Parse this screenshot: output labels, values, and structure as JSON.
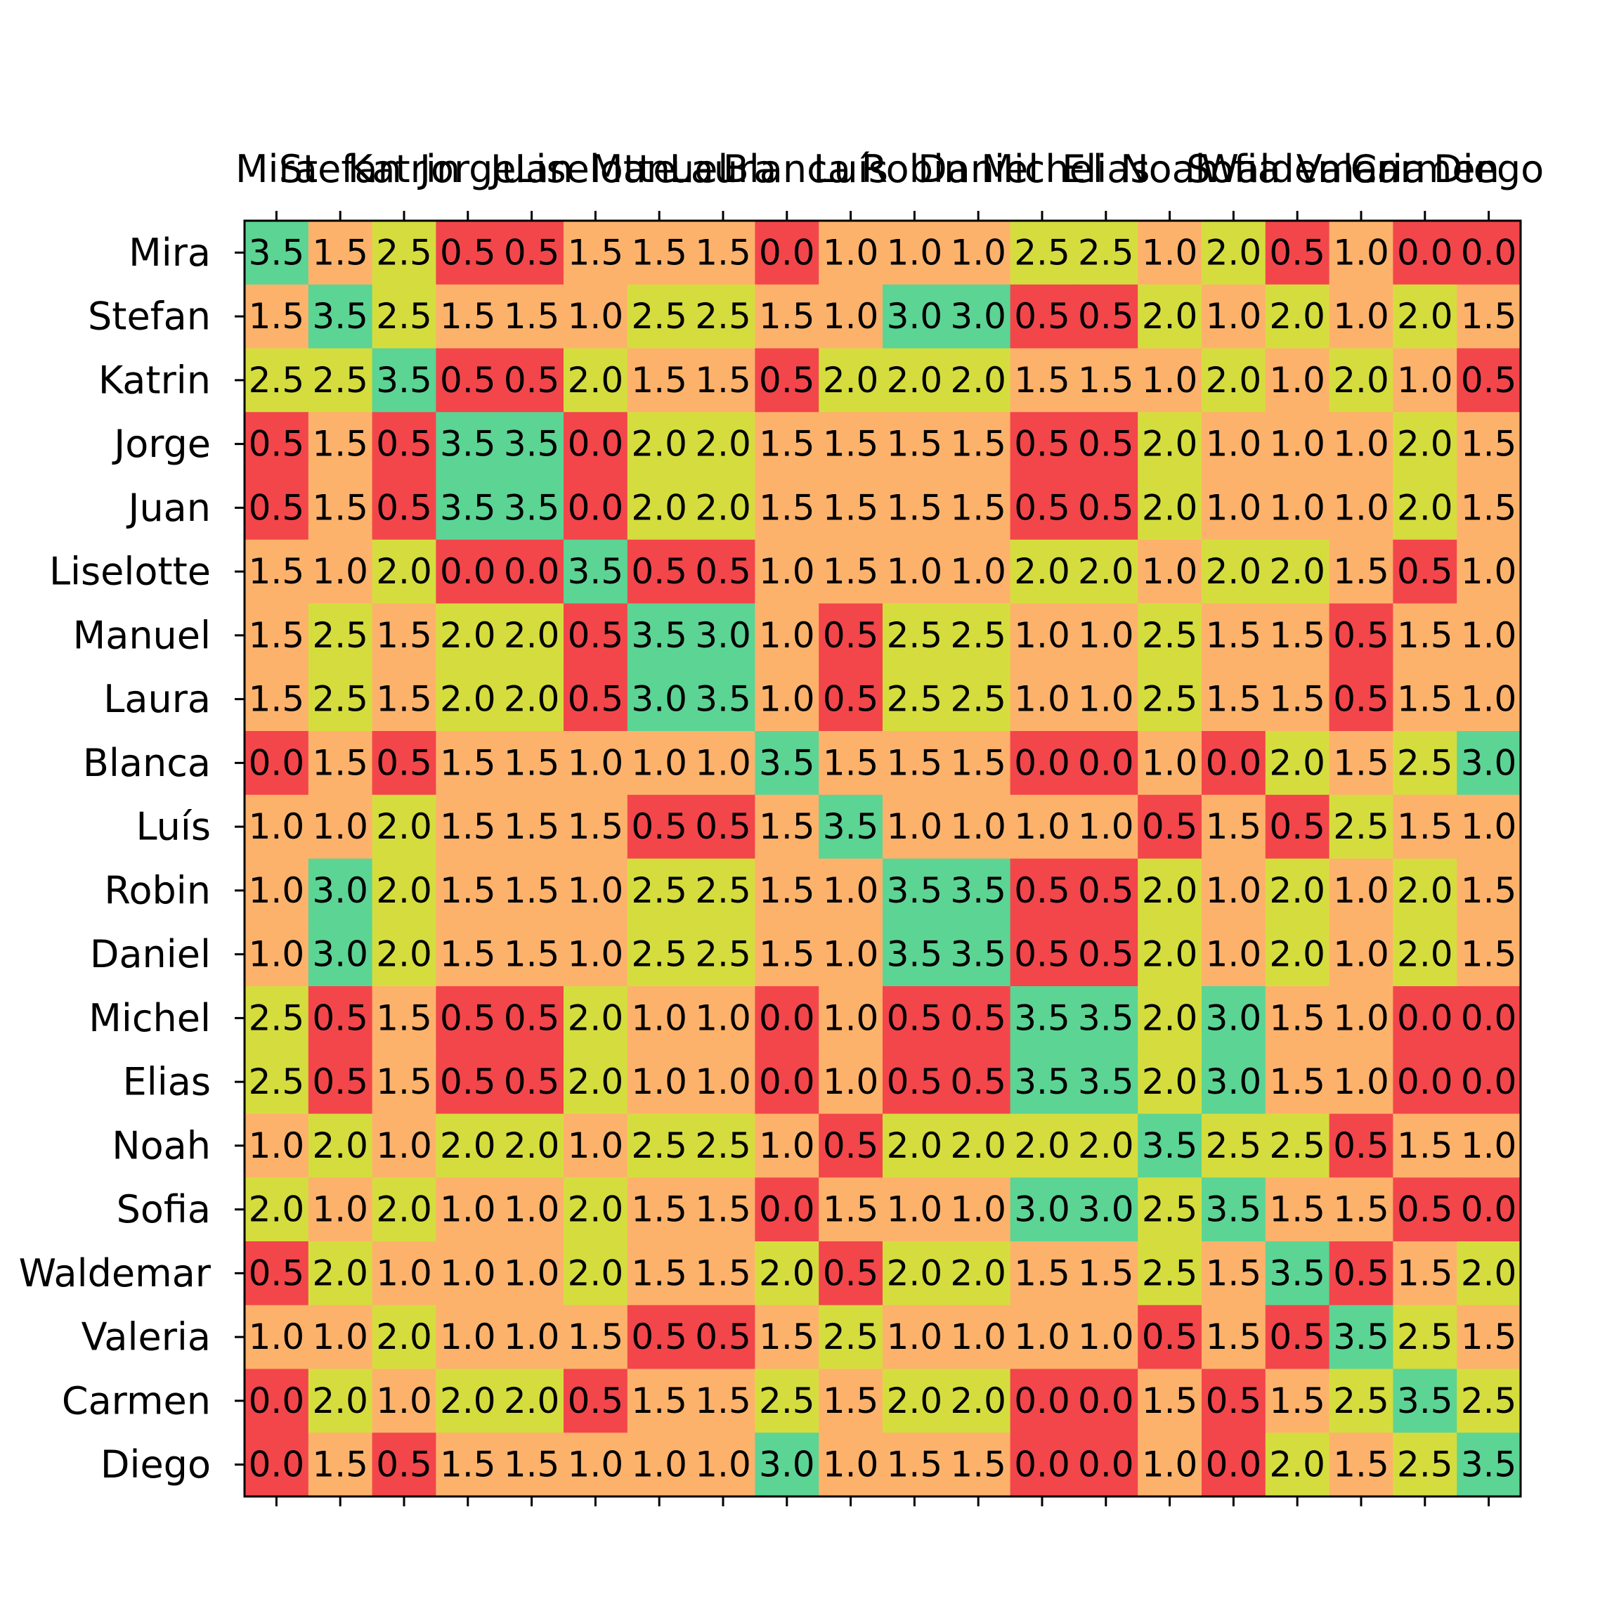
{
  "chart_data": {
    "type": "heatmap",
    "rows": [
      "Mira",
      "Stefan",
      "Katrin",
      "Jorge",
      "Juan",
      "Liselotte",
      "Manuel",
      "Laura",
      "Blanca",
      "Luís",
      "Robin",
      "Daniel",
      "Michel",
      "Elias",
      "Noah",
      "Sofia",
      "Waldemar",
      "Valeria",
      "Carmen",
      "Diego"
    ],
    "columns": [
      "Mira",
      "Stefan",
      "Katrin",
      "Jorge",
      "Juan",
      "Liselotte",
      "Manuel",
      "Laura",
      "Blanca",
      "Luís",
      "Robin",
      "Daniel",
      "Michel",
      "Elias",
      "Noah",
      "Sofia",
      "Waldemar",
      "Valeria",
      "Carmen",
      "Diego"
    ],
    "values": [
      [
        3.5,
        1.5,
        2.5,
        0.5,
        0.5,
        1.5,
        1.5,
        1.5,
        0.0,
        1.0,
        1.0,
        1.0,
        2.5,
        2.5,
        1.0,
        2.0,
        0.5,
        1.0,
        0.0,
        0.0
      ],
      [
        1.5,
        3.5,
        2.5,
        1.5,
        1.5,
        1.0,
        2.5,
        2.5,
        1.5,
        1.0,
        3.0,
        3.0,
        0.5,
        0.5,
        2.0,
        1.0,
        2.0,
        1.0,
        2.0,
        1.5
      ],
      [
        2.5,
        2.5,
        3.5,
        0.5,
        0.5,
        2.0,
        1.5,
        1.5,
        0.5,
        2.0,
        2.0,
        2.0,
        1.5,
        1.5,
        1.0,
        2.0,
        1.0,
        2.0,
        1.0,
        0.5
      ],
      [
        0.5,
        1.5,
        0.5,
        3.5,
        3.5,
        0.0,
        2.0,
        2.0,
        1.5,
        1.5,
        1.5,
        1.5,
        0.5,
        0.5,
        2.0,
        1.0,
        1.0,
        1.0,
        2.0,
        1.5
      ],
      [
        0.5,
        1.5,
        0.5,
        3.5,
        3.5,
        0.0,
        2.0,
        2.0,
        1.5,
        1.5,
        1.5,
        1.5,
        0.5,
        0.5,
        2.0,
        1.0,
        1.0,
        1.0,
        2.0,
        1.5
      ],
      [
        1.5,
        1.0,
        2.0,
        0.0,
        0.0,
        3.5,
        0.5,
        0.5,
        1.0,
        1.5,
        1.0,
        1.0,
        2.0,
        2.0,
        1.0,
        2.0,
        2.0,
        1.5,
        0.5,
        1.0
      ],
      [
        1.5,
        2.5,
        1.5,
        2.0,
        2.0,
        0.5,
        3.5,
        3.0,
        1.0,
        0.5,
        2.5,
        2.5,
        1.0,
        1.0,
        2.5,
        1.5,
        1.5,
        0.5,
        1.5,
        1.0
      ],
      [
        1.5,
        2.5,
        1.5,
        2.0,
        2.0,
        0.5,
        3.0,
        3.5,
        1.0,
        0.5,
        2.5,
        2.5,
        1.0,
        1.0,
        2.5,
        1.5,
        1.5,
        0.5,
        1.5,
        1.0
      ],
      [
        0.0,
        1.5,
        0.5,
        1.5,
        1.5,
        1.0,
        1.0,
        1.0,
        3.5,
        1.5,
        1.5,
        1.5,
        0.0,
        0.0,
        1.0,
        0.0,
        2.0,
        1.5,
        2.5,
        3.0
      ],
      [
        1.0,
        1.0,
        2.0,
        1.5,
        1.5,
        1.5,
        0.5,
        0.5,
        1.5,
        3.5,
        1.0,
        1.0,
        1.0,
        1.0,
        0.5,
        1.5,
        0.5,
        2.5,
        1.5,
        1.0
      ],
      [
        1.0,
        3.0,
        2.0,
        1.5,
        1.5,
        1.0,
        2.5,
        2.5,
        1.5,
        1.0,
        3.5,
        3.5,
        0.5,
        0.5,
        2.0,
        1.0,
        2.0,
        1.0,
        2.0,
        1.5
      ],
      [
        1.0,
        3.0,
        2.0,
        1.5,
        1.5,
        1.0,
        2.5,
        2.5,
        1.5,
        1.0,
        3.5,
        3.5,
        0.5,
        0.5,
        2.0,
        1.0,
        2.0,
        1.0,
        2.0,
        1.5
      ],
      [
        2.5,
        0.5,
        1.5,
        0.5,
        0.5,
        2.0,
        1.0,
        1.0,
        0.0,
        1.0,
        0.5,
        0.5,
        3.5,
        3.5,
        2.0,
        3.0,
        1.5,
        1.0,
        0.0,
        0.0
      ],
      [
        2.5,
        0.5,
        1.5,
        0.5,
        0.5,
        2.0,
        1.0,
        1.0,
        0.0,
        1.0,
        0.5,
        0.5,
        3.5,
        3.5,
        2.0,
        3.0,
        1.5,
        1.0,
        0.0,
        0.0
      ],
      [
        1.0,
        2.0,
        1.0,
        2.0,
        2.0,
        1.0,
        2.5,
        2.5,
        1.0,
        0.5,
        2.0,
        2.0,
        2.0,
        2.0,
        3.5,
        2.5,
        2.5,
        0.5,
        1.5,
        1.0
      ],
      [
        2.0,
        1.0,
        2.0,
        1.0,
        1.0,
        2.0,
        1.5,
        1.5,
        0.0,
        1.5,
        1.0,
        1.0,
        3.0,
        3.0,
        2.5,
        3.5,
        1.5,
        1.5,
        0.5,
        0.0
      ],
      [
        0.5,
        2.0,
        1.0,
        1.0,
        1.0,
        2.0,
        1.5,
        1.5,
        2.0,
        0.5,
        2.0,
        2.0,
        1.5,
        1.5,
        2.5,
        1.5,
        3.5,
        0.5,
        1.5,
        2.0
      ],
      [
        1.0,
        1.0,
        2.0,
        1.0,
        1.0,
        1.5,
        0.5,
        0.5,
        1.5,
        2.5,
        1.0,
        1.0,
        1.0,
        1.0,
        0.5,
        1.5,
        0.5,
        3.5,
        2.5,
        1.5
      ],
      [
        0.0,
        2.0,
        1.0,
        2.0,
        2.0,
        0.5,
        1.5,
        1.5,
        2.5,
        1.5,
        2.0,
        2.0,
        0.0,
        0.0,
        1.5,
        0.5,
        1.5,
        2.5,
        3.5,
        2.5
      ],
      [
        0.0,
        1.5,
        0.5,
        1.5,
        1.5,
        1.0,
        1.0,
        1.0,
        3.0,
        1.0,
        1.5,
        1.5,
        0.0,
        0.0,
        1.0,
        0.0,
        2.0,
        1.5,
        2.5,
        3.5
      ]
    ],
    "value_format": "0.0",
    "color_scale": [
      {
        "max": 0.5,
        "color": "#f2464b"
      },
      {
        "max": 1.5,
        "color": "#fdb26c"
      },
      {
        "max": 2.5,
        "color": "#d5dd3e"
      },
      {
        "max": 3.5,
        "color": "#5cd494"
      }
    ],
    "x_ticks_position": "top",
    "legend": "none",
    "grid": false
  }
}
